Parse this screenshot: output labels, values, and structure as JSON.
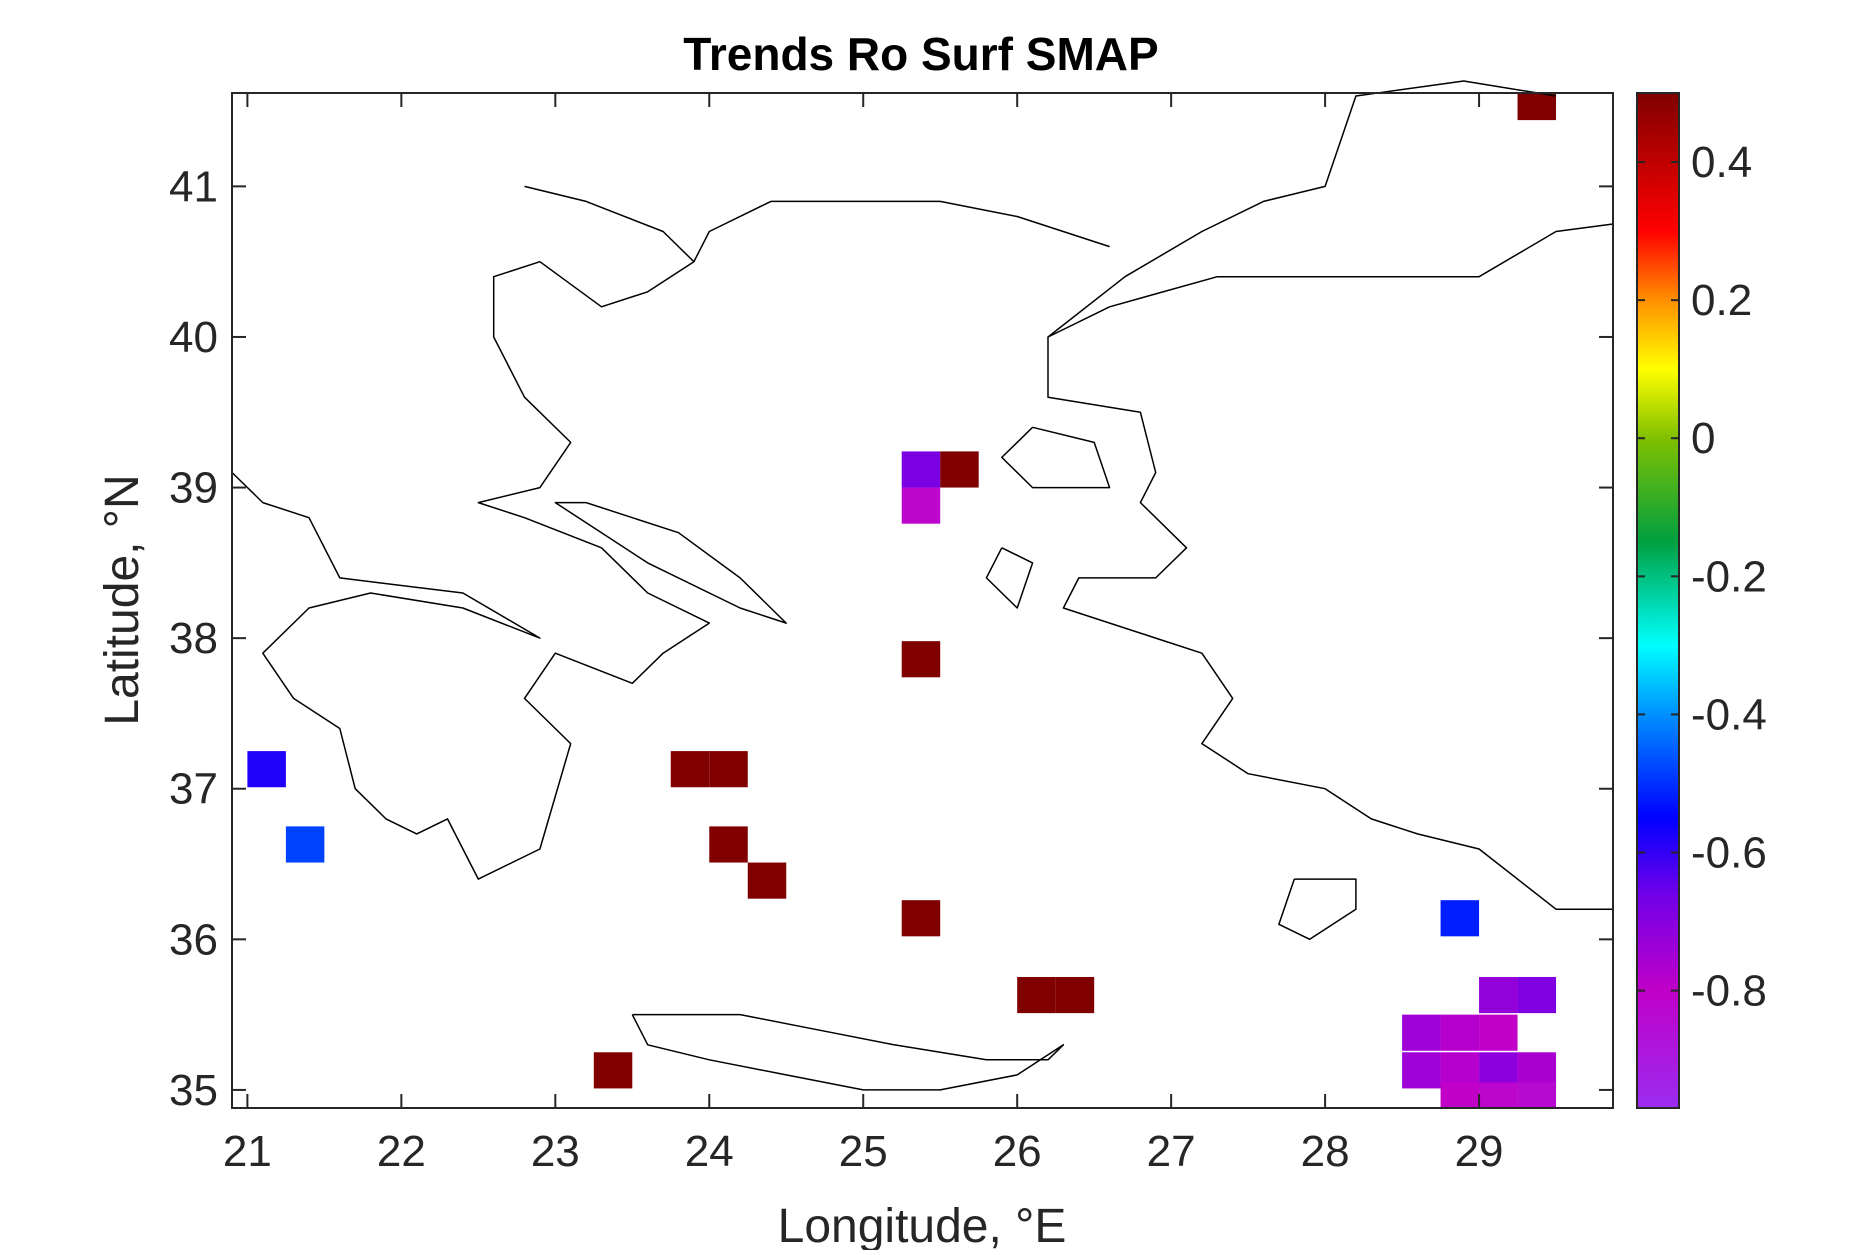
{
  "chart_data": {
    "type": "heatmap",
    "title": "Trends Ro Surf SMAP",
    "xlabel": "Longitude, °E",
    "ylabel": "Latitude, °N",
    "xlim": [
      20.9,
      29.87
    ],
    "ylim": [
      34.88,
      41.62
    ],
    "xticks": [
      21,
      22,
      23,
      24,
      25,
      26,
      27,
      28,
      29
    ],
    "xtick_labels": [
      "21",
      "22",
      "23",
      "24",
      "25",
      "26",
      "27",
      "28",
      "29"
    ],
    "yticks": [
      35,
      36,
      37,
      38,
      39,
      40,
      41
    ],
    "ytick_labels": [
      "35",
      "36",
      "37",
      "38",
      "39",
      "40",
      "41"
    ],
    "colorbar": {
      "limits": [
        -0.97,
        0.5
      ],
      "ticks": [
        0.4,
        0.2,
        0,
        -0.2,
        -0.4,
        -0.6,
        -0.8
      ],
      "tick_labels": [
        "0.4",
        "0.2",
        "0",
        "-0.2",
        "-0.4",
        "-0.6",
        "-0.8"
      ],
      "colormap": "jet-like with purple low end",
      "stops": [
        {
          "v": -0.97,
          "color": "#9b2cf0"
        },
        {
          "v": -0.8,
          "color": "#c000c8"
        },
        {
          "v": -0.66,
          "color": "#7000e8"
        },
        {
          "v": -0.55,
          "color": "#0000ff"
        },
        {
          "v": -0.4,
          "color": "#0090ff"
        },
        {
          "v": -0.3,
          "color": "#00ffff"
        },
        {
          "v": -0.15,
          "color": "#00a040"
        },
        {
          "v": 0.0,
          "color": "#80c000"
        },
        {
          "v": 0.1,
          "color": "#ffff00"
        },
        {
          "v": 0.2,
          "color": "#ff9000"
        },
        {
          "v": 0.3,
          "color": "#ff0000"
        },
        {
          "v": 0.5,
          "color": "#800000"
        }
      ]
    },
    "cell_size_deg": {
      "dlon": 0.25,
      "dlat": 0.24
    },
    "cells": [
      {
        "lon": 29.375,
        "lat": 41.56,
        "value": 0.5
      },
      {
        "lon": 25.375,
        "lat": 39.12,
        "value": -0.68
      },
      {
        "lon": 25.625,
        "lat": 39.12,
        "value": 0.5
      },
      {
        "lon": 25.375,
        "lat": 38.88,
        "value": -0.82
      },
      {
        "lon": 25.375,
        "lat": 37.86,
        "value": 0.5
      },
      {
        "lon": 23.875,
        "lat": 37.13,
        "value": 0.5
      },
      {
        "lon": 24.125,
        "lat": 37.13,
        "value": 0.5
      },
      {
        "lon": 21.125,
        "lat": 37.13,
        "value": -0.58
      },
      {
        "lon": 21.375,
        "lat": 36.63,
        "value": -0.48
      },
      {
        "lon": 24.125,
        "lat": 36.63,
        "value": 0.5
      },
      {
        "lon": 24.375,
        "lat": 36.39,
        "value": 0.5
      },
      {
        "lon": 25.375,
        "lat": 36.14,
        "value": 0.5
      },
      {
        "lon": 28.875,
        "lat": 36.14,
        "value": -0.52
      },
      {
        "lon": 26.125,
        "lat": 35.63,
        "value": 0.5
      },
      {
        "lon": 26.375,
        "lat": 35.63,
        "value": 0.5
      },
      {
        "lon": 29.125,
        "lat": 35.63,
        "value": -0.72
      },
      {
        "lon": 29.375,
        "lat": 35.63,
        "value": -0.69
      },
      {
        "lon": 28.625,
        "lat": 35.38,
        "value": -0.74
      },
      {
        "lon": 28.875,
        "lat": 35.38,
        "value": -0.78
      },
      {
        "lon": 29.125,
        "lat": 35.38,
        "value": -0.8
      },
      {
        "lon": 23.375,
        "lat": 35.13,
        "value": 0.5
      },
      {
        "lon": 28.625,
        "lat": 35.13,
        "value": -0.74
      },
      {
        "lon": 28.875,
        "lat": 35.13,
        "value": -0.78
      },
      {
        "lon": 29.125,
        "lat": 35.13,
        "value": -0.71
      },
      {
        "lon": 29.375,
        "lat": 35.13,
        "value": -0.76
      },
      {
        "lon": 28.875,
        "lat": 34.93,
        "value": -0.8
      },
      {
        "lon": 29.125,
        "lat": 34.93,
        "value": -0.82
      },
      {
        "lon": 29.375,
        "lat": 34.93,
        "value": -0.84
      }
    ],
    "coastline": [
      [
        [
          22.8,
          41.0
        ],
        [
          23.2,
          40.9
        ],
        [
          23.7,
          40.7
        ],
        [
          23.9,
          40.5
        ],
        [
          23.6,
          40.3
        ],
        [
          23.3,
          40.2
        ],
        [
          22.9,
          40.5
        ],
        [
          22.6,
          40.4
        ],
        [
          22.6,
          40.0
        ],
        [
          22.8,
          39.6
        ],
        [
          23.1,
          39.3
        ],
        [
          22.9,
          39.0
        ],
        [
          22.5,
          38.9
        ],
        [
          22.8,
          38.8
        ],
        [
          23.3,
          38.6
        ],
        [
          23.6,
          38.3
        ],
        [
          24.0,
          38.1
        ],
        [
          23.7,
          37.9
        ],
        [
          23.5,
          37.7
        ],
        [
          23.0,
          37.9
        ],
        [
          22.8,
          37.6
        ],
        [
          23.1,
          37.3
        ],
        [
          22.9,
          36.6
        ],
        [
          22.5,
          36.4
        ],
        [
          22.3,
          36.8
        ],
        [
          22.1,
          36.7
        ],
        [
          21.9,
          36.8
        ],
        [
          21.7,
          37.0
        ],
        [
          21.6,
          37.4
        ],
        [
          21.3,
          37.6
        ],
        [
          21.1,
          37.9
        ],
        [
          21.4,
          38.2
        ],
        [
          21.8,
          38.3
        ],
        [
          22.4,
          38.2
        ],
        [
          22.9,
          38.0
        ],
        [
          22.4,
          38.3
        ],
        [
          21.6,
          38.4
        ],
        [
          21.4,
          38.8
        ],
        [
          21.1,
          38.9
        ],
        [
          20.9,
          39.1
        ]
      ],
      [
        [
          29.5,
          41.6
        ],
        [
          28.9,
          41.7
        ],
        [
          28.2,
          41.6
        ],
        [
          28.0,
          41.0
        ],
        [
          27.6,
          40.9
        ],
        [
          27.2,
          40.7
        ],
        [
          26.7,
          40.4
        ],
        [
          26.2,
          40.0
        ],
        [
          26.6,
          40.2
        ],
        [
          27.3,
          40.4
        ],
        [
          27.8,
          40.4
        ],
        [
          28.5,
          40.4
        ],
        [
          29.0,
          40.4
        ],
        [
          29.5,
          40.7
        ],
        [
          29.87,
          40.75
        ]
      ],
      [
        [
          26.6,
          40.6
        ],
        [
          26.0,
          40.8
        ],
        [
          25.5,
          40.9
        ],
        [
          24.9,
          40.9
        ],
        [
          24.4,
          40.9
        ],
        [
          24.0,
          40.7
        ],
        [
          23.9,
          40.5
        ]
      ],
      [
        [
          26.2,
          40.0
        ],
        [
          26.2,
          39.6
        ],
        [
          26.8,
          39.5
        ],
        [
          26.9,
          39.1
        ],
        [
          26.8,
          38.9
        ],
        [
          27.1,
          38.6
        ],
        [
          26.9,
          38.4
        ],
        [
          26.4,
          38.4
        ],
        [
          26.3,
          38.2
        ],
        [
          26.9,
          38.0
        ],
        [
          27.2,
          37.9
        ],
        [
          27.4,
          37.6
        ],
        [
          27.2,
          37.3
        ],
        [
          27.5,
          37.1
        ],
        [
          28.0,
          37.0
        ],
        [
          28.3,
          36.8
        ],
        [
          28.6,
          36.7
        ],
        [
          29.0,
          36.6
        ],
        [
          29.5,
          36.2
        ],
        [
          29.87,
          36.2
        ]
      ],
      [
        [
          23.5,
          35.5
        ],
        [
          23.6,
          35.3
        ],
        [
          24.0,
          35.2
        ],
        [
          24.5,
          35.1
        ],
        [
          25.0,
          35.0
        ],
        [
          25.5,
          35.0
        ],
        [
          26.0,
          35.1
        ],
        [
          26.3,
          35.3
        ],
        [
          26.2,
          35.2
        ],
        [
          25.8,
          35.2
        ],
        [
          25.2,
          35.3
        ],
        [
          24.7,
          35.4
        ],
        [
          24.2,
          35.5
        ],
        [
          23.9,
          35.5
        ],
        [
          23.5,
          35.5
        ]
      ],
      [
        [
          27.8,
          36.4
        ],
        [
          28.2,
          36.4
        ],
        [
          28.2,
          36.2
        ],
        [
          27.9,
          36.0
        ],
        [
          27.7,
          36.1
        ],
        [
          27.8,
          36.4
        ]
      ],
      [
        [
          26.1,
          39.4
        ],
        [
          26.5,
          39.3
        ],
        [
          26.6,
          39.0
        ],
        [
          26.1,
          39.0
        ],
        [
          25.9,
          39.2
        ],
        [
          26.1,
          39.4
        ]
      ],
      [
        [
          25.9,
          38.6
        ],
        [
          26.1,
          38.5
        ],
        [
          26.0,
          38.2
        ],
        [
          25.8,
          38.4
        ],
        [
          25.9,
          38.6
        ]
      ],
      [
        [
          23.2,
          38.9
        ],
        [
          23.8,
          38.7
        ],
        [
          24.2,
          38.4
        ],
        [
          24.5,
          38.1
        ],
        [
          24.2,
          38.2
        ],
        [
          23.6,
          38.5
        ],
        [
          23.0,
          38.9
        ],
        [
          23.2,
          38.9
        ]
      ]
    ]
  }
}
